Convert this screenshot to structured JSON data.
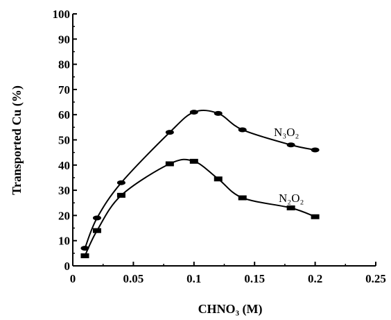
{
  "chart_data": {
    "type": "line",
    "xlabel": "CHNO₃ (M)",
    "ylabel": "Transported Cu (%)",
    "xlim": [
      0,
      0.25
    ],
    "ylim": [
      0,
      100
    ],
    "xticks": [
      "0",
      "0.05",
      "0.1",
      "0.15",
      "0.2",
      "0.25"
    ],
    "yticks": [
      "0",
      "10",
      "20",
      "30",
      "40",
      "50",
      "60",
      "70",
      "80",
      "90",
      "100"
    ],
    "grid": false,
    "series": [
      {
        "name": "N₃O₂",
        "marker": "ellipse",
        "x": [
          0.01,
          0.02,
          0.04,
          0.08,
          0.1,
          0.12,
          0.14,
          0.18,
          0.2
        ],
        "y": [
          7,
          19,
          33,
          53,
          61,
          60.5,
          54,
          48,
          46
        ]
      },
      {
        "name": "N₂O₂",
        "marker": "rectangle",
        "x": [
          0.01,
          0.02,
          0.04,
          0.08,
          0.1,
          0.12,
          0.14,
          0.18,
          0.2
        ],
        "y": [
          4,
          14,
          28,
          40.5,
          41.5,
          34.5,
          27,
          23,
          19.5
        ]
      }
    ]
  }
}
